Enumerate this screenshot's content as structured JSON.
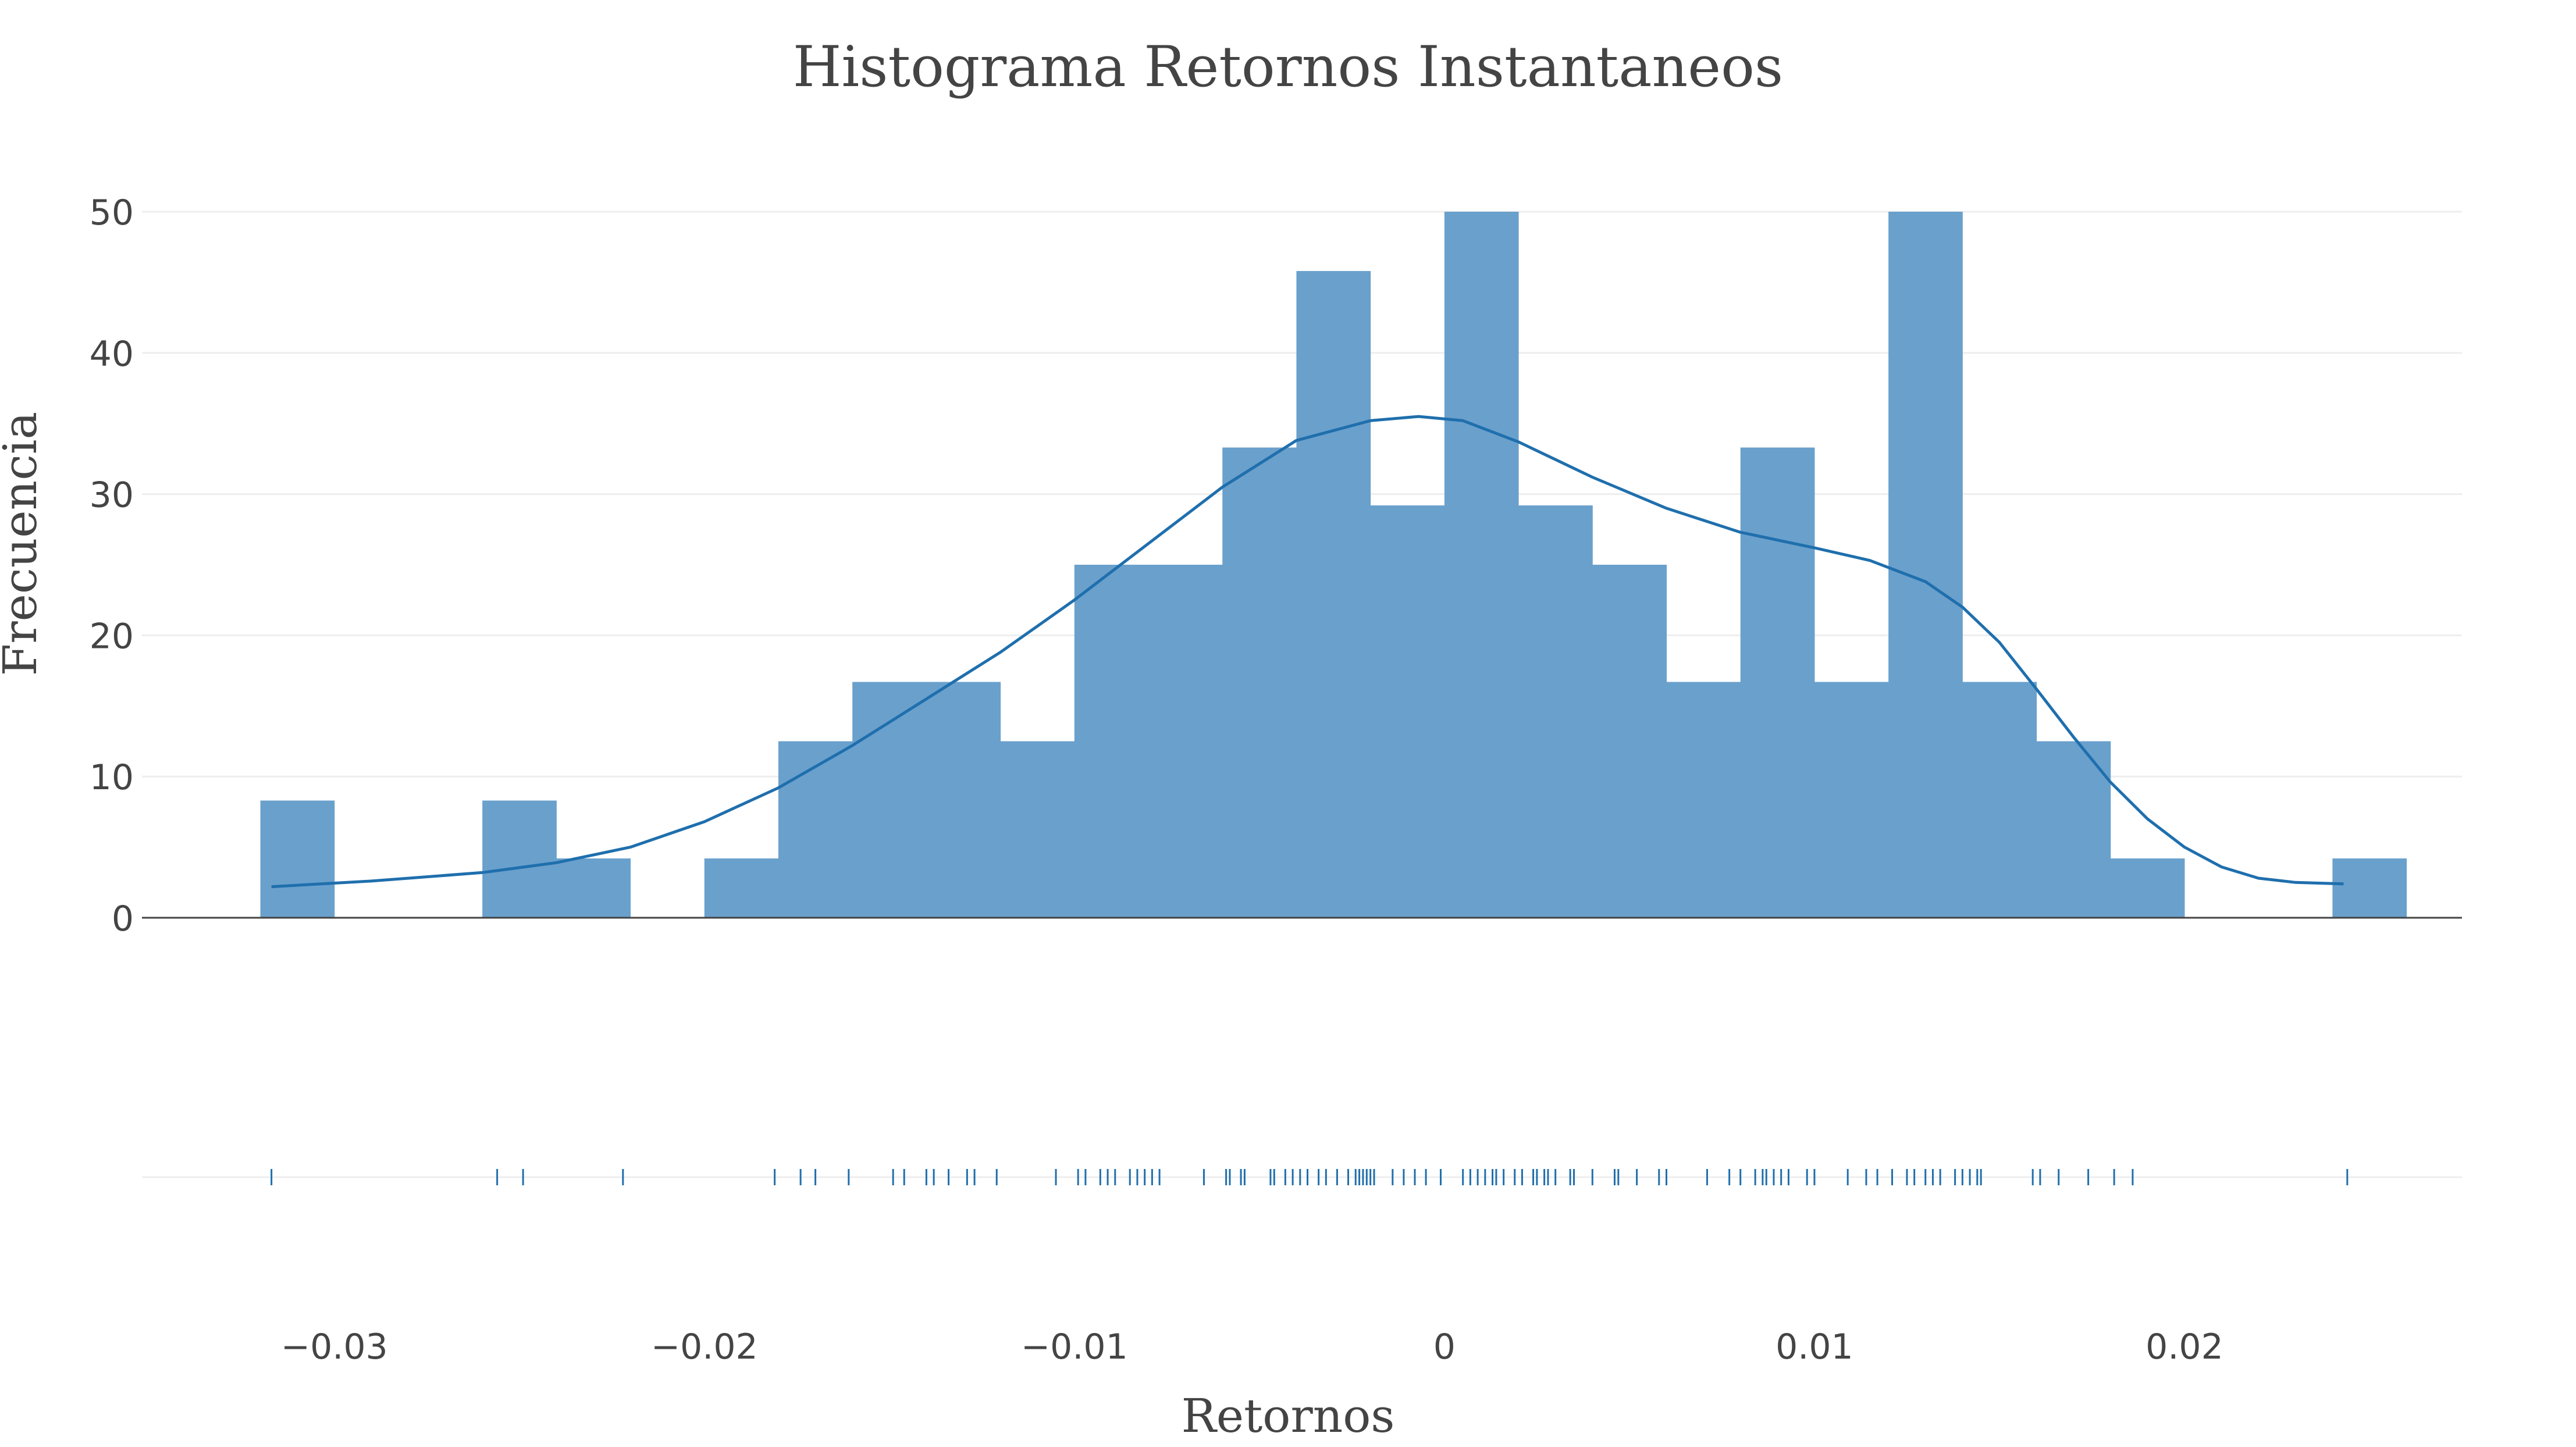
{
  "chart_data": {
    "type": "bar",
    "title": "Histograma Retornos Instantaneos",
    "xlabel": "Retornos",
    "ylabel": "Frecuencia",
    "xlim": [
      -0.0352,
      0.0275
    ],
    "ylim": [
      0,
      50
    ],
    "grid": true,
    "legend": "none",
    "colors": {
      "bar": "#6aa0cc",
      "line": "#1f6fad",
      "rug": "#1f6fad",
      "grid": "#eeeeee",
      "zero_line": "#444444",
      "text": "#444444"
    },
    "y_ticks": [
      0,
      10,
      20,
      30,
      40,
      50
    ],
    "y_tick_labels": [
      "0",
      "10",
      "20",
      "30",
      "40",
      "50"
    ],
    "x_ticks": [
      -0.03,
      -0.02,
      -0.01,
      0,
      0.01,
      0.02
    ],
    "x_tick_labels": [
      "−0.03",
      "−0.02",
      "−0.01",
      "0",
      "0.01",
      "0.02"
    ],
    "bins": [
      {
        "x0": -0.032,
        "x1": -0.03,
        "value": 8.3
      },
      {
        "x0": -0.03,
        "x1": -0.028,
        "value": 0
      },
      {
        "x0": -0.028,
        "x1": -0.026,
        "value": 0
      },
      {
        "x0": -0.026,
        "x1": -0.024,
        "value": 8.3
      },
      {
        "x0": -0.024,
        "x1": -0.022,
        "value": 4.2
      },
      {
        "x0": -0.022,
        "x1": -0.02,
        "value": 0
      },
      {
        "x0": -0.02,
        "x1": -0.018,
        "value": 4.2
      },
      {
        "x0": -0.018,
        "x1": -0.016,
        "value": 12.5
      },
      {
        "x0": -0.016,
        "x1": -0.014,
        "value": 16.7
      },
      {
        "x0": -0.014,
        "x1": -0.012,
        "value": 16.7
      },
      {
        "x0": -0.012,
        "x1": -0.01,
        "value": 12.5
      },
      {
        "x0": -0.01,
        "x1": -0.008,
        "value": 25.0
      },
      {
        "x0": -0.008,
        "x1": -0.006,
        "value": 25.0
      },
      {
        "x0": -0.006,
        "x1": -0.004,
        "value": 33.3
      },
      {
        "x0": -0.004,
        "x1": -0.002,
        "value": 45.8
      },
      {
        "x0": -0.002,
        "x1": 0.0,
        "value": 29.2
      },
      {
        "x0": 0.0,
        "x1": 0.002,
        "value": 50.0
      },
      {
        "x0": 0.002,
        "x1": 0.004,
        "value": 29.2
      },
      {
        "x0": 0.004,
        "x1": 0.006,
        "value": 25.0
      },
      {
        "x0": 0.006,
        "x1": 0.008,
        "value": 16.7
      },
      {
        "x0": 0.008,
        "x1": 0.01,
        "value": 33.3
      },
      {
        "x0": 0.01,
        "x1": 0.012,
        "value": 16.7
      },
      {
        "x0": 0.012,
        "x1": 0.014,
        "value": 50.0
      },
      {
        "x0": 0.014,
        "x1": 0.016,
        "value": 16.7
      },
      {
        "x0": 0.016,
        "x1": 0.018,
        "value": 12.5
      },
      {
        "x0": 0.018,
        "x1": 0.02,
        "value": 4.2
      },
      {
        "x0": 0.02,
        "x1": 0.022,
        "value": 0
      },
      {
        "x0": 0.022,
        "x1": 0.024,
        "value": 0
      },
      {
        "x0": 0.024,
        "x1": 0.026,
        "value": 4.2
      }
    ],
    "kde": {
      "x": [
        -0.0317,
        -0.029,
        -0.026,
        -0.024,
        -0.022,
        -0.02,
        -0.018,
        -0.016,
        -0.014,
        -0.012,
        -0.01,
        -0.008,
        -0.006,
        -0.004,
        -0.002,
        -0.0007,
        0.0005,
        0.002,
        0.004,
        0.006,
        0.008,
        0.01,
        0.0115,
        0.013,
        0.014,
        0.015,
        0.016,
        0.017,
        0.018,
        0.019,
        0.02,
        0.021,
        0.022,
        0.023,
        0.0243
      ],
      "y": [
        2.2,
        2.6,
        3.2,
        3.9,
        5.0,
        6.8,
        9.2,
        12.2,
        15.5,
        18.8,
        22.5,
        26.5,
        30.5,
        33.8,
        35.2,
        35.5,
        35.2,
        33.7,
        31.2,
        29.0,
        27.3,
        26.2,
        25.3,
        23.8,
        22.0,
        19.5,
        16.2,
        12.8,
        9.6,
        7.0,
        5.0,
        3.6,
        2.8,
        2.5,
        2.4
      ]
    },
    "rug": [
      -0.0317,
      -0.0256,
      -0.0249,
      -0.0222,
      -0.0181,
      -0.0174,
      -0.017,
      -0.0161,
      -0.0149,
      -0.0146,
      -0.014,
      -0.0138,
      -0.0134,
      -0.0129,
      -0.0127,
      -0.0121,
      -0.0105,
      -0.0099,
      -0.0097,
      -0.0093,
      -0.0091,
      -0.0089,
      -0.0085,
      -0.0083,
      -0.0081,
      -0.0079,
      -0.0077,
      -0.0065,
      -0.0059,
      -0.0058,
      -0.0055,
      -0.0054,
      -0.0047,
      -0.0046,
      -0.0043,
      -0.0041,
      -0.0039,
      -0.0037,
      -0.0034,
      -0.0032,
      -0.0029,
      -0.0026,
      -0.0024,
      -0.0023,
      -0.0022,
      -0.0021,
      -0.002,
      -0.0019,
      -0.0014,
      -0.0011,
      -0.0008,
      -0.0005,
      -0.0001,
      0.0005,
      0.0007,
      0.0009,
      0.0011,
      0.0013,
      0.0014,
      0.0016,
      0.0019,
      0.0021,
      0.0024,
      0.0025,
      0.0027,
      0.0028,
      0.003,
      0.0034,
      0.0035,
      0.004,
      0.0046,
      0.0047,
      0.0052,
      0.0058,
      0.006,
      0.0071,
      0.0077,
      0.008,
      0.0084,
      0.0086,
      0.0087,
      0.0089,
      0.0091,
      0.0093,
      0.0098,
      0.01,
      0.0109,
      0.0114,
      0.0117,
      0.0121,
      0.0125,
      0.0127,
      0.013,
      0.0132,
      0.0134,
      0.0138,
      0.014,
      0.0142,
      0.0144,
      0.0145,
      0.0159,
      0.0161,
      0.0166,
      0.0174,
      0.0181,
      0.0186,
      0.0244
    ]
  }
}
